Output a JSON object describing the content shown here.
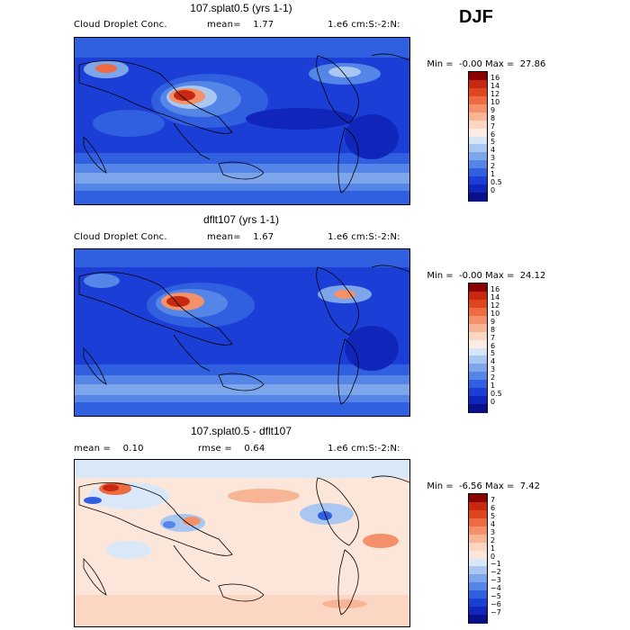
{
  "season": "DJF",
  "panels": [
    {
      "title": "107.splat0.5 (yrs 1-1)",
      "left_label": "Cloud Droplet Conc.",
      "mid_label": "mean=",
      "mid_value": "1.77",
      "right_label": "1.e6 cm:S:-2:N:",
      "min_label": "Min =",
      "min_value": "-0.00",
      "max_label": "Max =",
      "max_value": "27.86",
      "colorbar_labels": [
        "16",
        "14",
        "12",
        "10",
        "9",
        "8",
        "7",
        "6",
        "5",
        "4",
        "3",
        "2",
        "1",
        "0.5",
        "0"
      ]
    },
    {
      "title": "dflt107 (yrs 1-1)",
      "left_label": "Cloud Droplet Conc.",
      "mid_label": "mean=",
      "mid_value": "1.67",
      "right_label": "1.e6 cm:S:-2:N:",
      "min_label": "Min =",
      "min_value": "-0.00",
      "max_label": "Max =",
      "max_value": "24.12",
      "colorbar_labels": [
        "16",
        "14",
        "12",
        "10",
        "9",
        "8",
        "7",
        "6",
        "5",
        "4",
        "3",
        "2",
        "1",
        "0.5",
        "0"
      ]
    },
    {
      "title": "107.splat0.5 - dflt107",
      "left_label": "mean =",
      "left_value": "0.10",
      "mid_label": "rmse =",
      "mid_value": "0.64",
      "right_label": "1.e6 cm:S:-2:N:",
      "min_label": "Min =",
      "min_value": "-6.56",
      "max_label": "Max =",
      "max_value": "7.42",
      "colorbar_labels": [
        "7",
        "6",
        "5",
        "4",
        "3",
        "2",
        "1",
        "0",
        "−1",
        "−2",
        "−3",
        "−4",
        "−5",
        "−6",
        "−7"
      ]
    }
  ],
  "colors": {
    "abs_scale": [
      "#8b0000",
      "#c8280f",
      "#e0461e",
      "#ee6a40",
      "#f4916a",
      "#f7b596",
      "#fbd6c2",
      "#fcece2",
      "#d5e6f8",
      "#a9c7f0",
      "#7da6ea",
      "#5585e6",
      "#3060e0",
      "#1b3fd6",
      "#1026bb",
      "#0a0f8a"
    ],
    "diff_scale": [
      "#8b0000",
      "#c8280f",
      "#e0461e",
      "#ee6a40",
      "#f4916a",
      "#f7b596",
      "#fbd6c2",
      "#fce6da",
      "#d9e8f8",
      "#a9c7f0",
      "#7da6ea",
      "#5585e6",
      "#3060e0",
      "#1b3fd6",
      "#1026bb",
      "#0a0f8a"
    ]
  }
}
